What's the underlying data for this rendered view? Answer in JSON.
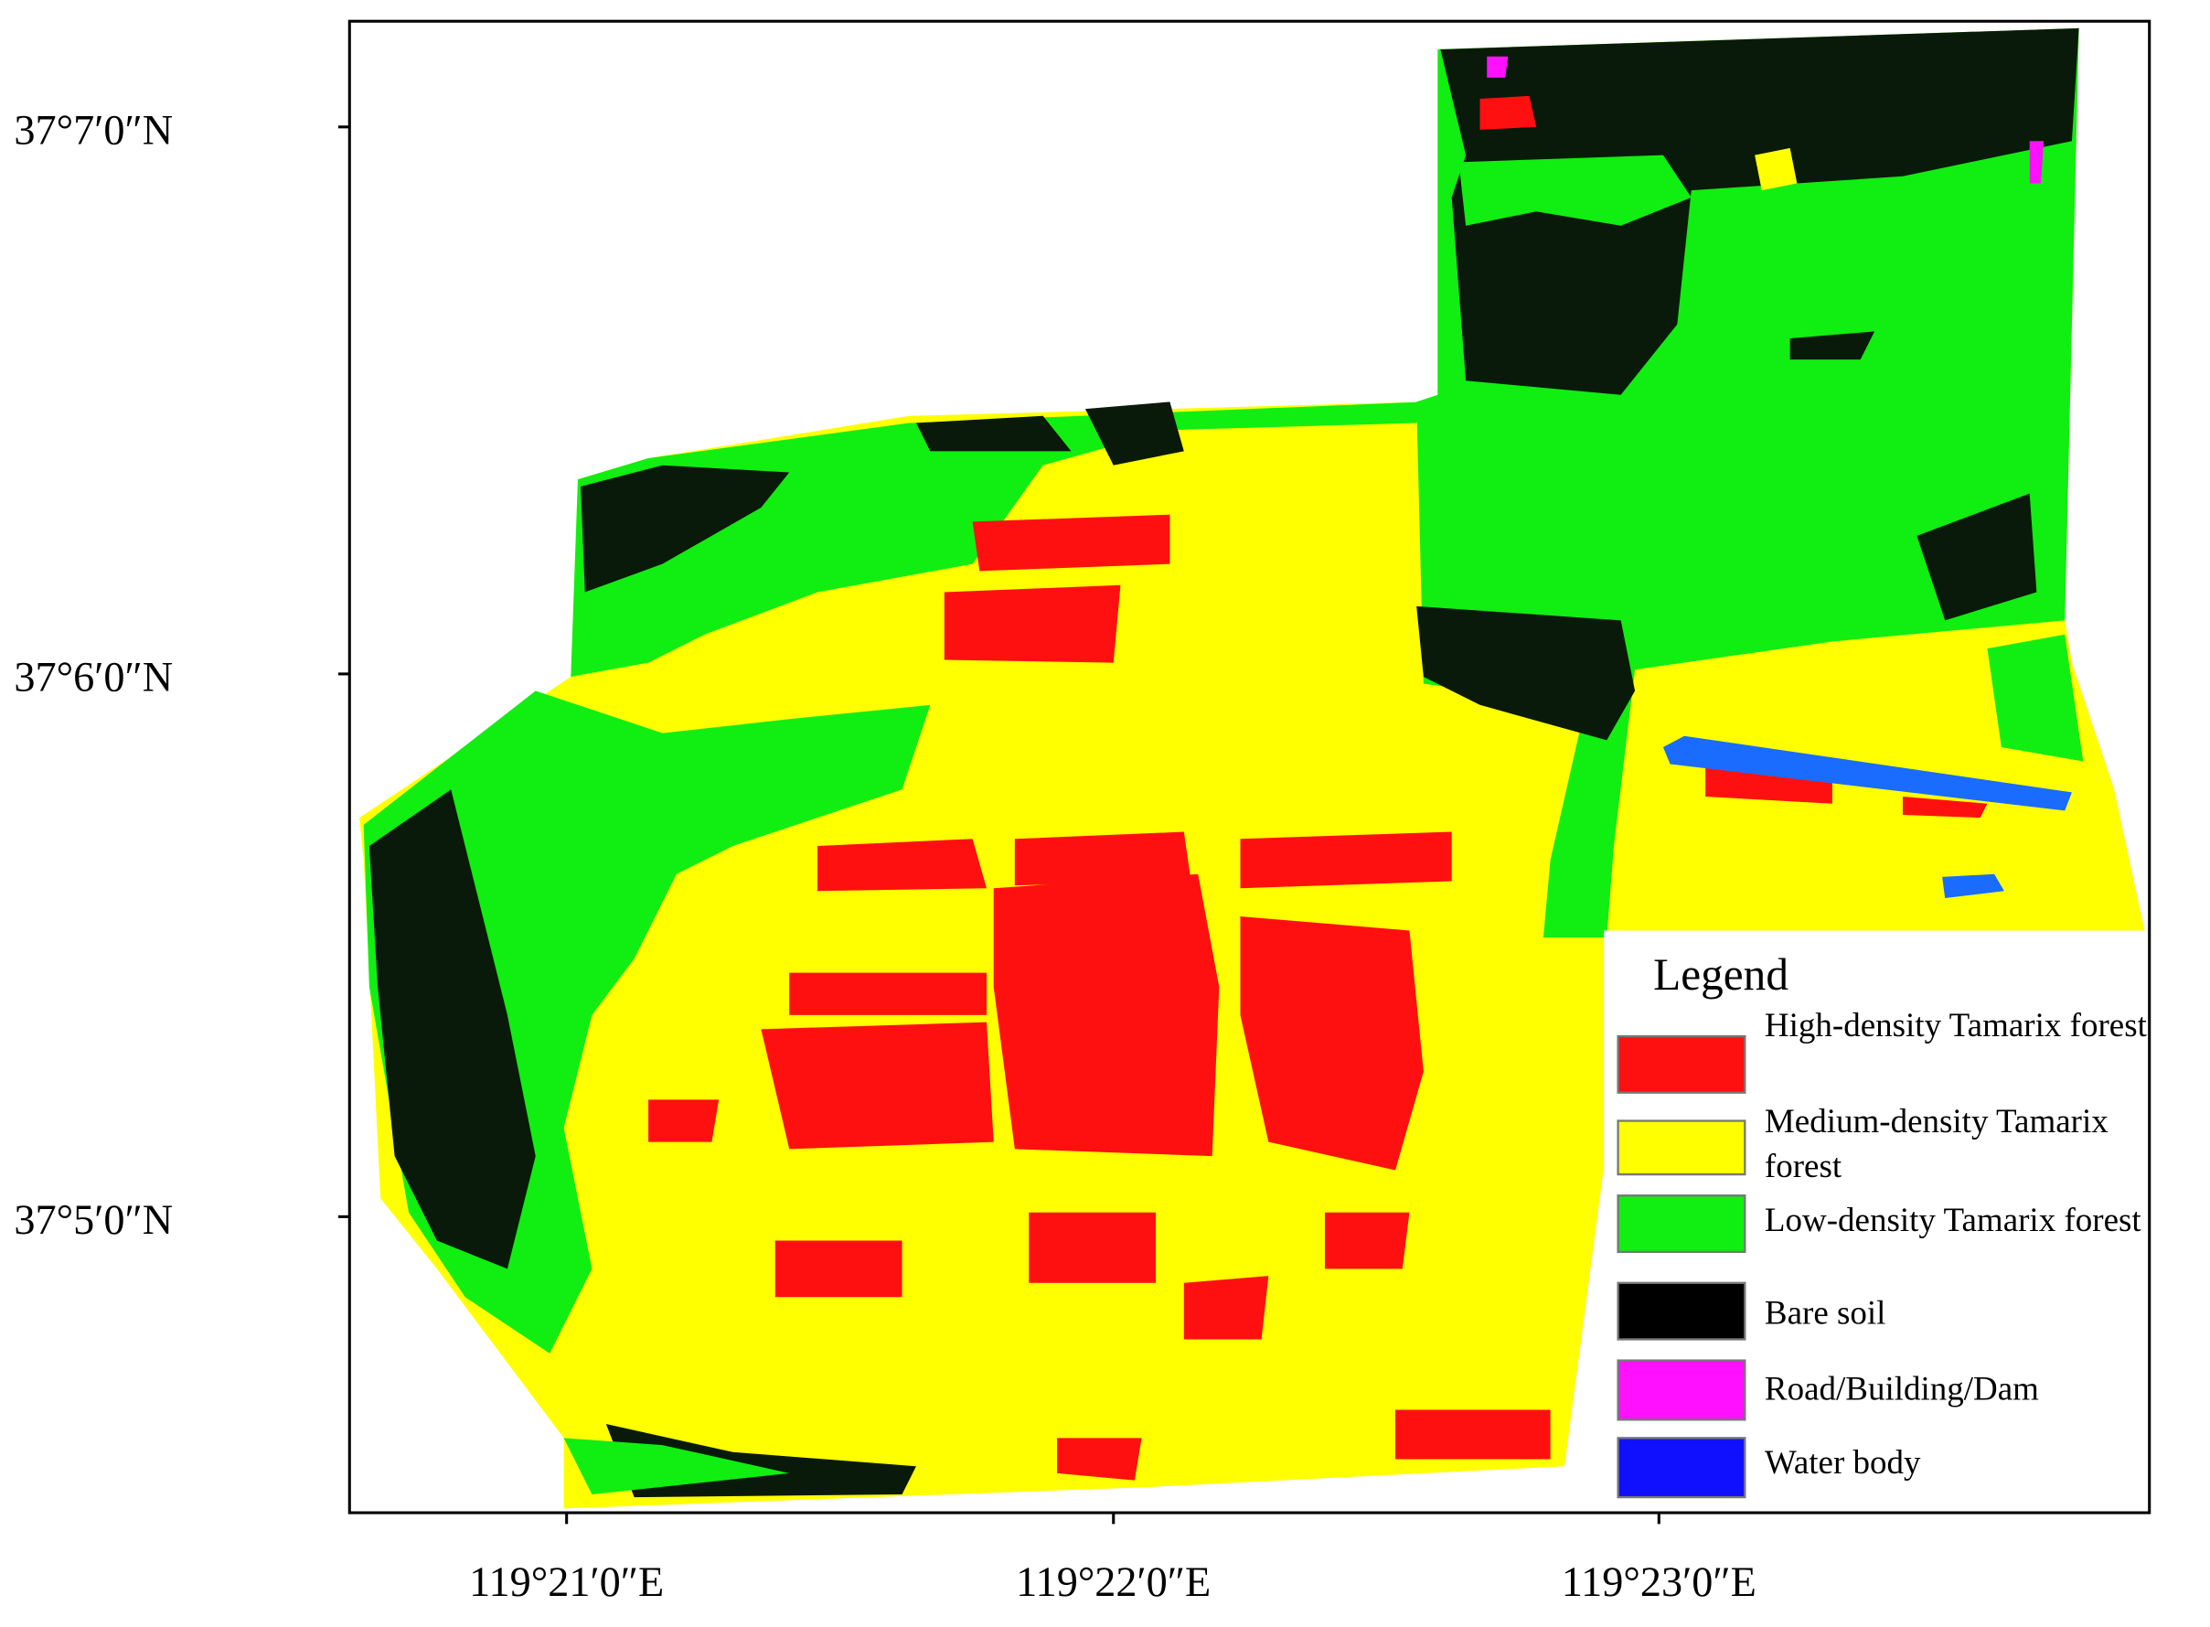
{
  "map": {
    "lat_labels": [
      "37°7′0″N",
      "37°6′0″N",
      "37°5′0″N"
    ],
    "lon_labels": [
      "119°21′0″E",
      "119°22′0″E",
      "119°23′0″E"
    ],
    "legend": {
      "title": "Legend",
      "items": [
        {
          "label": "High-density Tamarix forest",
          "color": "#ff1010"
        },
        {
          "label": "Medium-density Tamarix forest",
          "color": "#ffff00"
        },
        {
          "label": "Low-density Tamarix forest",
          "color": "#11ee11"
        },
        {
          "label": "Bare soil",
          "color": "#000000"
        },
        {
          "label": "Road/Building/Dam",
          "color": "#ff10ff"
        },
        {
          "label": "Water body",
          "color": "#1010ff"
        }
      ]
    }
  }
}
